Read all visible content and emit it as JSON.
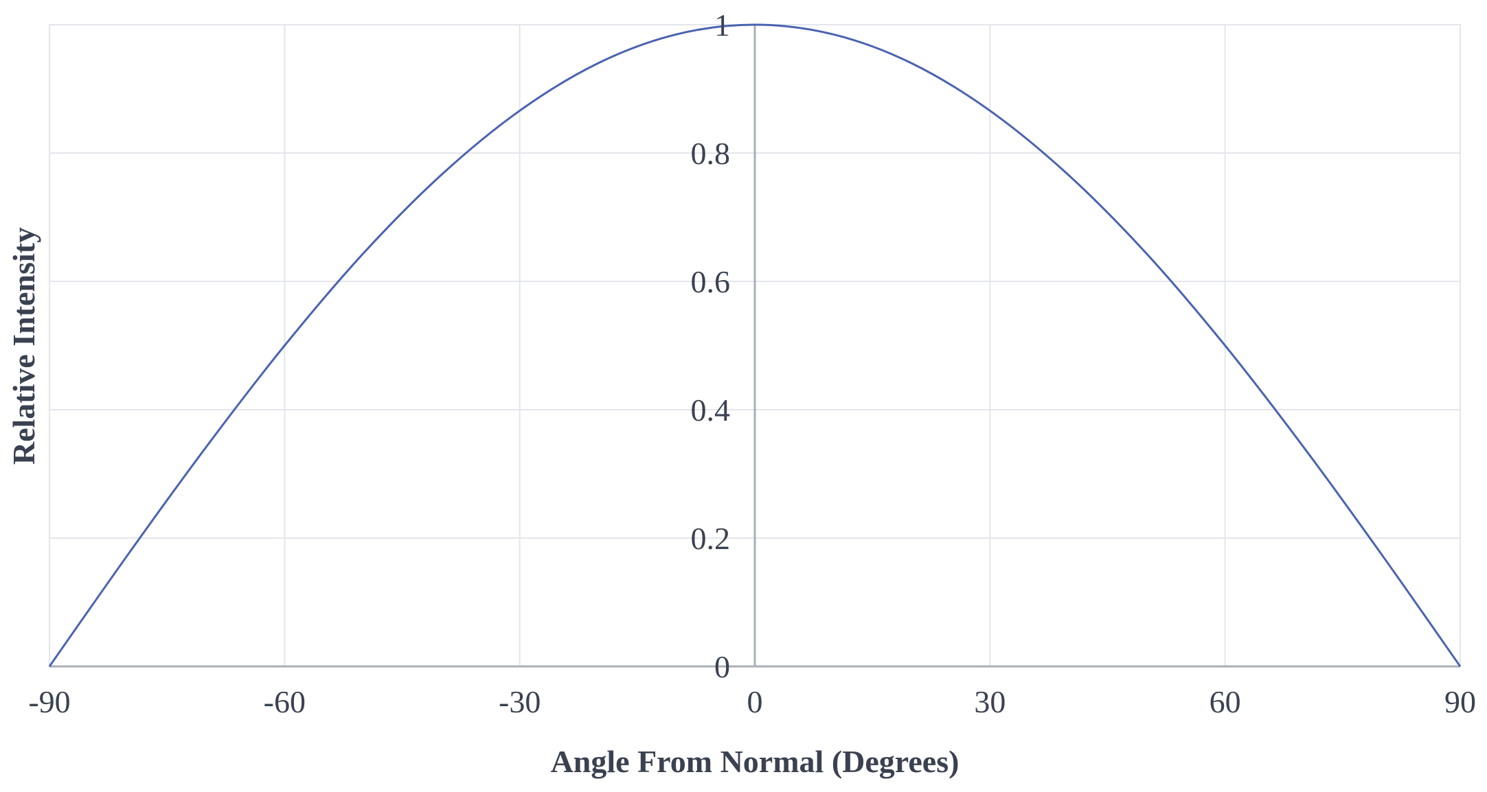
{
  "chart_data": {
    "type": "line",
    "title": "",
    "xlabel": "Angle From Normal (Degrees)",
    "ylabel": "Relative Intensity",
    "xlim": [
      -90,
      90
    ],
    "ylim": [
      0,
      1
    ],
    "x_ticks": [
      -90,
      -60,
      -30,
      0,
      30,
      60,
      90
    ],
    "x_tick_labels": [
      "-90",
      "-60",
      "-30",
      "0",
      "30",
      "60",
      "90"
    ],
    "y_ticks": [
      0,
      0.2,
      0.4,
      0.6,
      0.8,
      1
    ],
    "y_tick_labels": [
      "0",
      "0.2",
      "0.4",
      "0.6",
      "0.8",
      "1"
    ],
    "grid": true,
    "legend": "none",
    "colors": {
      "line": "#4a62b0",
      "grid": "#e3e6ec",
      "axis": "#a9aeb8",
      "text": "#3a4150"
    },
    "series": [
      {
        "x": [
          -90,
          -80,
          -70,
          -60,
          -50,
          -40,
          -30,
          -20,
          -10,
          0,
          10,
          20,
          30,
          40,
          50,
          60,
          70,
          80,
          90
        ],
        "values": [
          0,
          0.174,
          0.342,
          0.5,
          0.643,
          0.766,
          0.866,
          0.94,
          0.985,
          1,
          0.985,
          0.94,
          0.866,
          0.766,
          0.643,
          0.5,
          0.342,
          0.174,
          0
        ]
      }
    ]
  }
}
